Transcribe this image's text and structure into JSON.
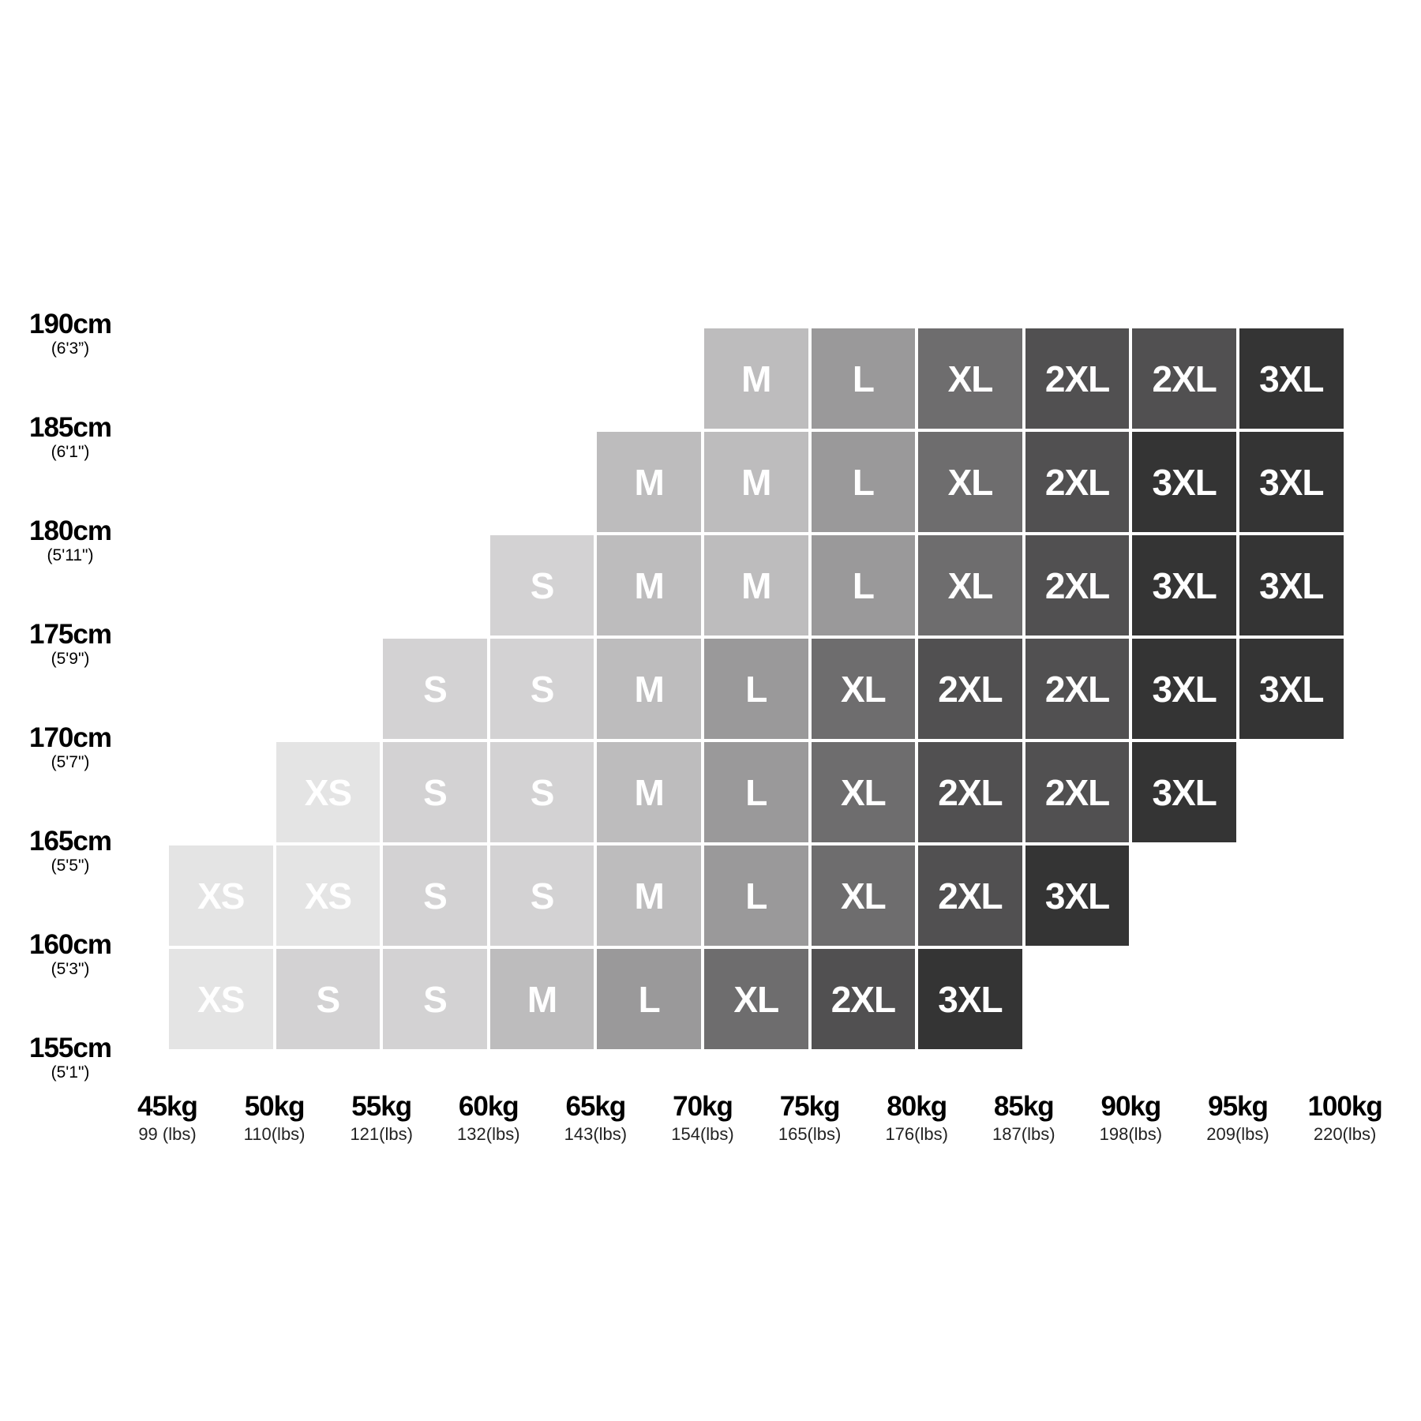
{
  "chart_data": {
    "type": "heatmap",
    "title": "",
    "y_ticks": [
      {
        "label": "190cm",
        "sub": "(6'3”)"
      },
      {
        "label": "185cm",
        "sub": "(6'1\")"
      },
      {
        "label": "180cm",
        "sub": "(5'11\")"
      },
      {
        "label": "175cm",
        "sub": "(5'9\")"
      },
      {
        "label": "170cm",
        "sub": "(5'7\")"
      },
      {
        "label": "165cm",
        "sub": "(5'5\")"
      },
      {
        "label": "160cm",
        "sub": "(5'3\")"
      },
      {
        "label": "155cm",
        "sub": "(5'1\")"
      }
    ],
    "x_ticks": [
      {
        "label": "45kg",
        "sub": "99 (lbs)"
      },
      {
        "label": "50kg",
        "sub": "110(lbs)"
      },
      {
        "label": "55kg",
        "sub": "121(lbs)"
      },
      {
        "label": "60kg",
        "sub": "132(lbs)"
      },
      {
        "label": "65kg",
        "sub": "143(lbs)"
      },
      {
        "label": "70kg",
        "sub": "154(lbs)"
      },
      {
        "label": "75kg",
        "sub": "165(lbs)"
      },
      {
        "label": "80kg",
        "sub": "176(lbs)"
      },
      {
        "label": "85kg",
        "sub": "187(lbs)"
      },
      {
        "label": "90kg",
        "sub": "198(lbs)"
      },
      {
        "label": "95kg",
        "sub": "209(lbs)"
      },
      {
        "label": "100kg",
        "sub": "220(lbs)"
      }
    ],
    "rows": [
      {
        "height_range": "185-190cm",
        "start_col": 5,
        "sizes": [
          "M",
          "L",
          "XL",
          "2XL",
          "2XL",
          "3XL"
        ]
      },
      {
        "height_range": "180-185cm",
        "start_col": 4,
        "sizes": [
          "M",
          "M",
          "L",
          "XL",
          "2XL",
          "3XL",
          "3XL"
        ]
      },
      {
        "height_range": "175-180cm",
        "start_col": 3,
        "sizes": [
          "S",
          "M",
          "M",
          "L",
          "XL",
          "2XL",
          "3XL",
          "3XL"
        ]
      },
      {
        "height_range": "170-175cm",
        "start_col": 2,
        "sizes": [
          "S",
          "S",
          "M",
          "L",
          "XL",
          "2XL",
          "2XL",
          "3XL",
          "3XL"
        ]
      },
      {
        "height_range": "165-170cm",
        "start_col": 1,
        "sizes": [
          "XS",
          "S",
          "S",
          "M",
          "L",
          "XL",
          "2XL",
          "2XL",
          "3XL"
        ]
      },
      {
        "height_range": "160-165cm",
        "start_col": 0,
        "sizes": [
          "XS",
          "XS",
          "S",
          "S",
          "M",
          "L",
          "XL",
          "2XL",
          "3XL"
        ]
      },
      {
        "height_range": "155-160cm",
        "start_col": 0,
        "sizes": [
          "XS",
          "S",
          "S",
          "M",
          "L",
          "XL",
          "2XL",
          "3XL"
        ]
      }
    ],
    "size_colors": {
      "XS": "#e4e4e4",
      "S": "#d3d2d3",
      "M": "#bdbcbd",
      "L": "#9a999a",
      "XL": "#6e6d6e",
      "2XL": "#515051",
      "3XL": "#343434"
    },
    "text_color": "#ffffff"
  }
}
